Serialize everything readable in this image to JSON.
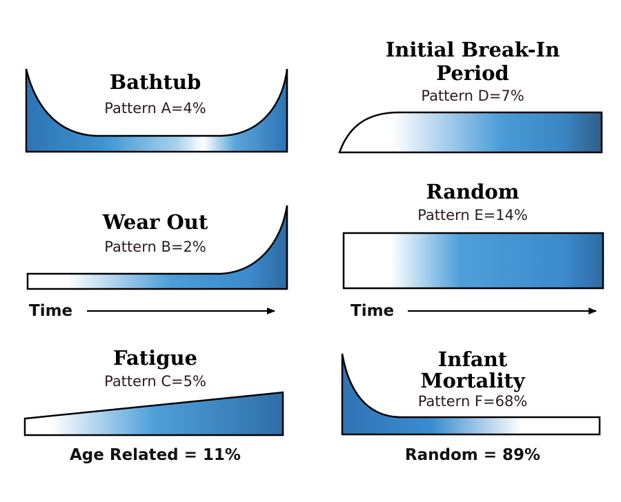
{
  "colors": {
    "curve_dark": "#2e6ea8",
    "curve_mid": "#3b8bcd",
    "curve_light": "#ffffff",
    "outline": "#000000"
  },
  "panels": {
    "a": {
      "title": "Bathtub",
      "pattern": "Pattern A=4%"
    },
    "b": {
      "title": "Wear Out",
      "pattern": "Pattern B=2%"
    },
    "c": {
      "title": "Fatigue",
      "pattern": "Pattern C=5%"
    },
    "d": {
      "title_line1": "Initial Break-In",
      "title_line2": "Period",
      "pattern": "Pattern D=7%"
    },
    "e": {
      "title": "Random",
      "pattern": "Pattern E=14%"
    },
    "f": {
      "title_line1": "Infant",
      "title_line2": "Mortality",
      "pattern": "Pattern F=68%"
    }
  },
  "axis": {
    "left_label": "Time",
    "right_label": "Time"
  },
  "summary": {
    "age_related": "Age Related = 11%",
    "random": "Random = 89%"
  }
}
